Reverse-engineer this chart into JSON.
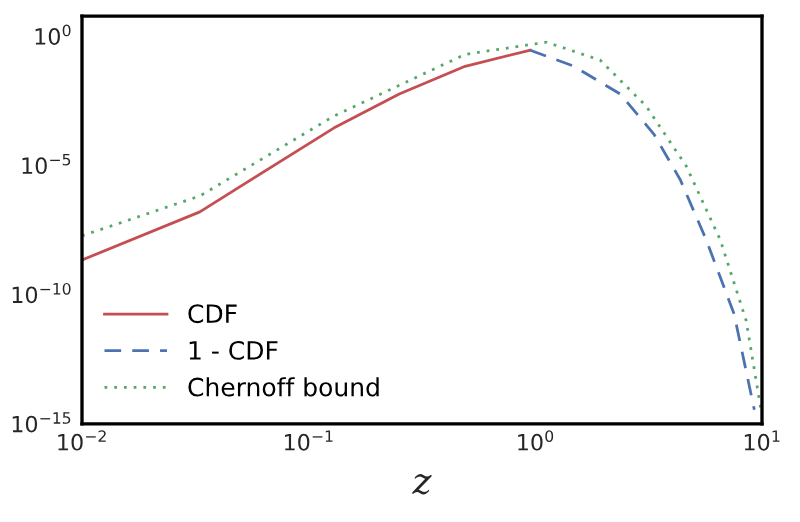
{
  "chart_data": {
    "type": "line",
    "xlabel": "z",
    "log": "xy",
    "grid": false,
    "legend": "bottom left",
    "xlim": [
      0.01,
      10
    ],
    "ylim": [
      1e-15,
      6
    ],
    "xticks": [
      {
        "value": 0.01,
        "label": "10$^{−2}$"
      },
      {
        "value": 0.1,
        "label": "10$^{−1}$"
      },
      {
        "value": 1,
        "label": "10$^{0}$"
      },
      {
        "value": 10,
        "label": "10$^{1}$"
      }
    ],
    "yticks": [
      {
        "value": 1e-15,
        "label": "10$^{−15}$"
      },
      {
        "value": 1e-10,
        "label": "10$^{−10}$"
      },
      {
        "value": 1e-05,
        "label": "10$^{−5}$"
      },
      {
        "value": 1,
        "label": "10$^{0}$"
      }
    ],
    "series": [
      {
        "name": "CDF",
        "color": "#c44e52",
        "line_style": "solid",
        "x": [
          0.01,
          0.0331,
          0.129,
          0.251,
          0.49,
          0.95
        ],
        "values": [
          2.2e-09,
          1.6e-07,
          0.00028,
          0.0058,
          0.069,
          0.29
        ]
      },
      {
        "name": "1 - CDF",
        "color": "#4c72b0",
        "line_style": "dashed",
        "x": [
          0.95,
          1.48,
          2.37,
          3.34,
          4.36,
          5.68,
          7.53,
          9.25
        ],
        "values": [
          0.29,
          0.069,
          0.0058,
          0.00016,
          2.8e-06,
          1.3e-08,
          1.8e-11,
          3.5e-15
        ]
      },
      {
        "name": "Chernoff bound",
        "color": "#55a868",
        "line_style": "dotted",
        "x": [
          0.01,
          0.0331,
          0.129,
          0.49,
          1.12,
          1.93,
          3.08,
          4.63,
          6.55,
          8.51,
          9.9
        ],
        "values": [
          1.9e-08,
          6.6e-07,
          0.00081,
          0.2,
          0.59,
          0.12,
          0.002,
          9.5e-06,
          1.3e-08,
          1e-11,
          3.5e-15
        ]
      }
    ]
  }
}
